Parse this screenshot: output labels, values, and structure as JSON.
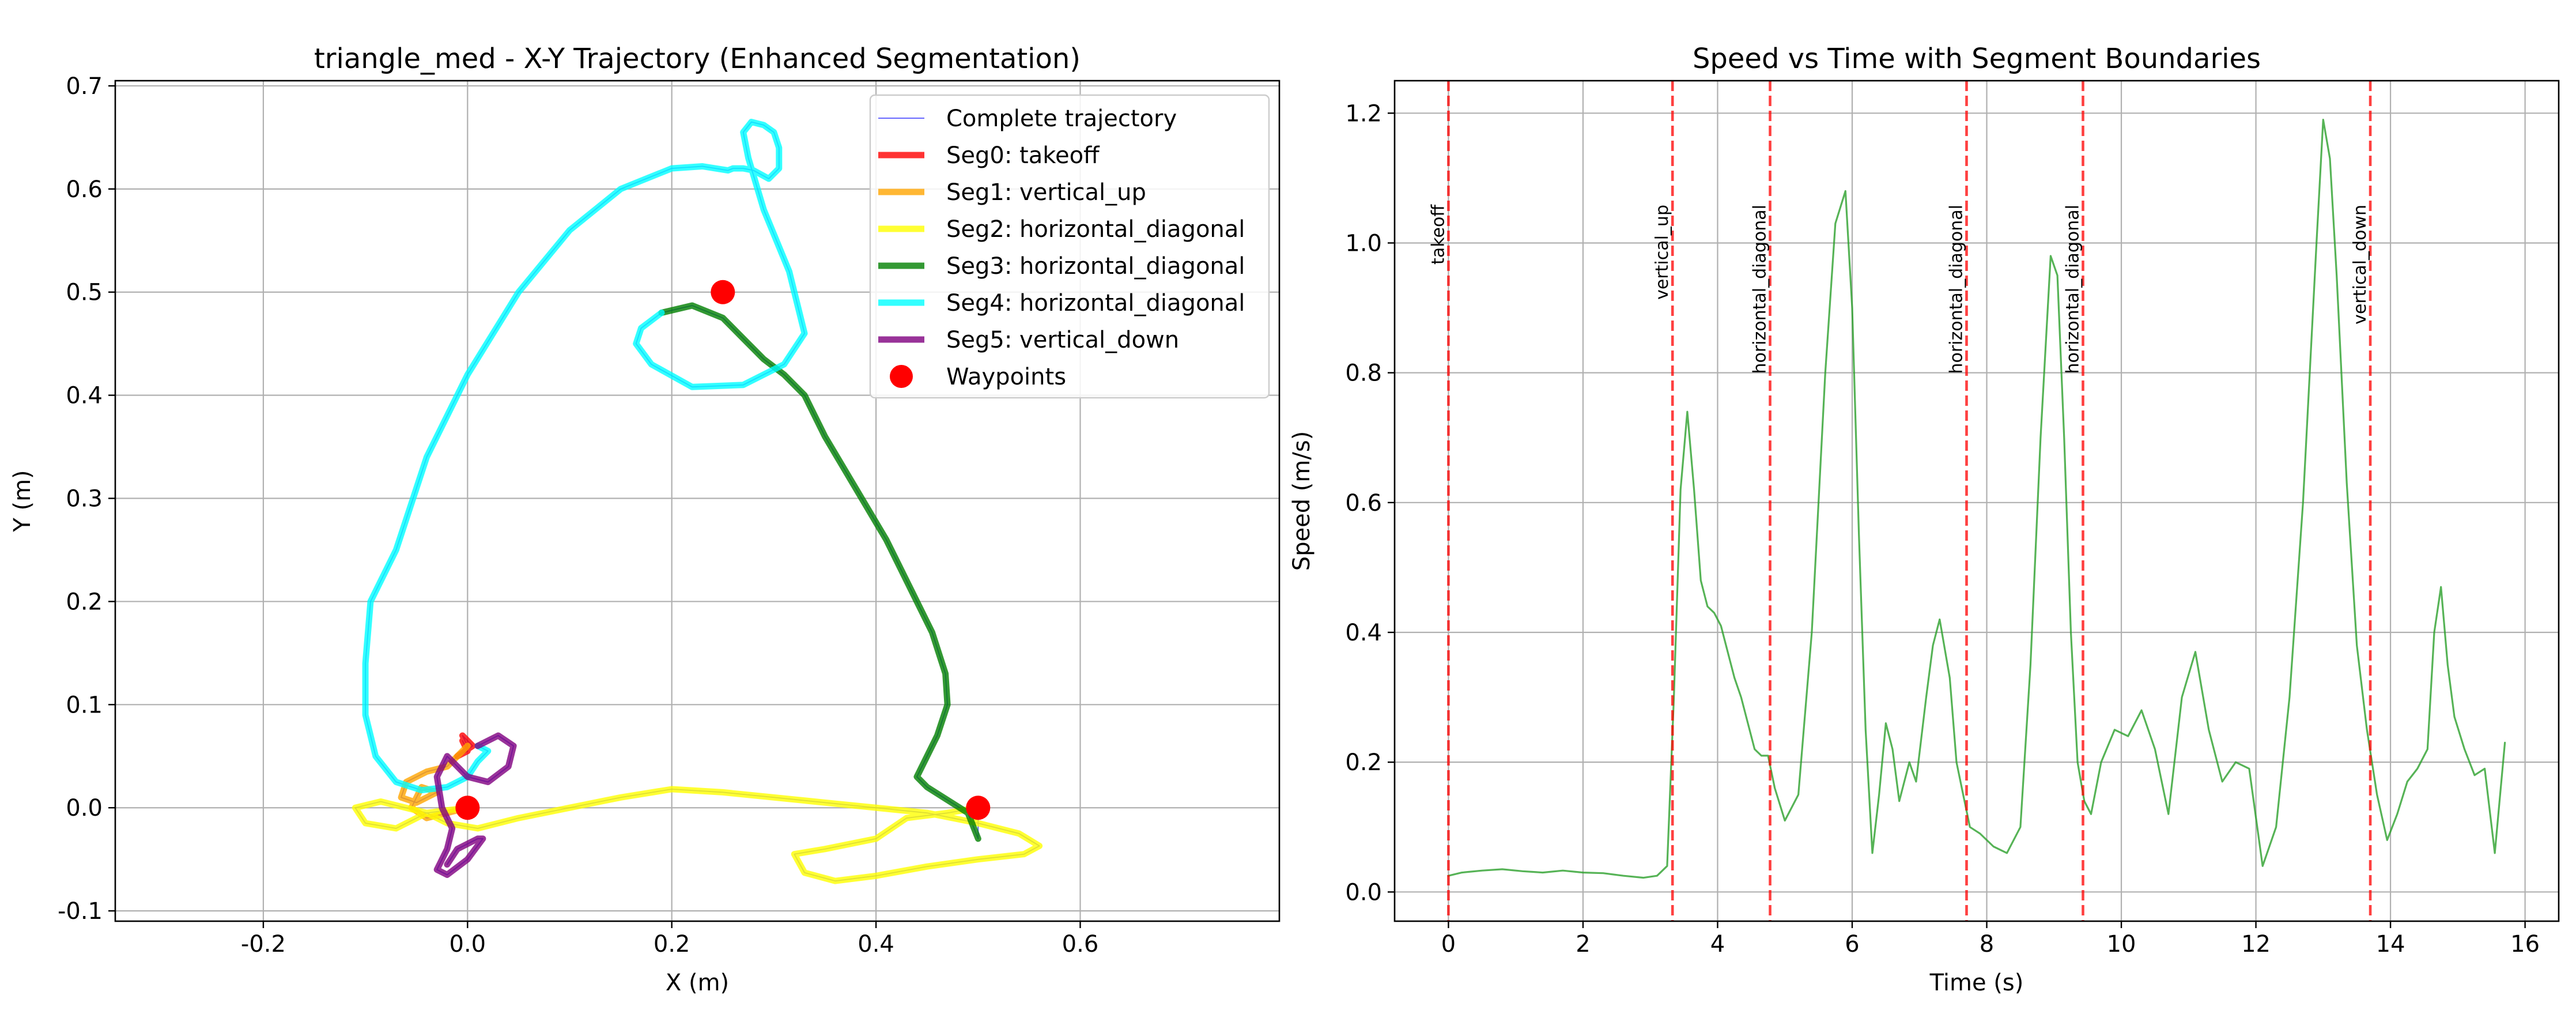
{
  "colors": {
    "complete": "#0000ff",
    "seg0": "#ff0000",
    "seg1": "#ffa500",
    "seg2": "#ffff00",
    "seg3": "#008000",
    "seg4": "#00ffff",
    "seg5": "#800080",
    "waypoint": "#ff0000",
    "speed": "#2ca02c",
    "boundary": "#ff0000",
    "grid": "#b0b0b0"
  },
  "chart_data": [
    {
      "type": "line",
      "title": "triangle_med - X-Y Trajectory (Enhanced Segmentation)",
      "xlabel": "X (m)",
      "ylabel": "Y (m)",
      "xlim": [
        -0.345,
        0.795
      ],
      "ylim": [
        -0.11,
        0.705
      ],
      "xticks": [
        -0.2,
        0.0,
        0.2,
        0.4,
        0.6
      ],
      "xtick_labels": [
        "-0.2",
        "0.0",
        "0.2",
        "0.4",
        "0.6"
      ],
      "yticks": [
        -0.1,
        0.0,
        0.1,
        0.2,
        0.3,
        0.4,
        0.5,
        0.6,
        0.7
      ],
      "ytick_labels": [
        "-0.1",
        "0.0",
        "0.1",
        "0.2",
        "0.3",
        "0.4",
        "0.5",
        "0.6",
        "0.7"
      ],
      "grid": true,
      "legend_position": "upper-right",
      "legend": [
        "Complete trajectory",
        "Seg0: takeoff",
        "Seg1: vertical_up",
        "Seg2: horizontal_diagonal",
        "Seg3: horizontal_diagonal",
        "Seg4: horizontal_diagonal",
        "Seg5: vertical_down",
        "Waypoints"
      ],
      "series": [
        {
          "name": "Seg0: takeoff",
          "color_key": "seg0",
          "x": [
            -0.005,
            0.0,
            -0.01,
            0.005,
            -0.005,
            0.0
          ],
          "y": [
            0.065,
            0.055,
            0.05,
            0.06,
            0.07,
            0.06
          ]
        },
        {
          "name": "Seg1: vertical_up",
          "color_key": "seg1",
          "x": [
            0.0,
            -0.02,
            -0.04,
            -0.06,
            -0.065,
            -0.05,
            -0.03,
            -0.045,
            -0.055,
            -0.04,
            -0.02,
            0.0
          ],
          "y": [
            0.06,
            0.04,
            0.035,
            0.025,
            0.01,
            0.005,
            0.015,
            0.02,
            0.0,
            -0.01,
            -0.005,
            0.0
          ]
        },
        {
          "name": "Seg2: horizontal_diagonal",
          "color_key": "seg2",
          "x": [
            0.0,
            -0.04,
            -0.07,
            -0.1,
            -0.11,
            -0.085,
            -0.04,
            -0.02,
            0.01,
            0.05,
            0.1,
            0.15,
            0.2,
            0.25,
            0.3,
            0.35,
            0.4,
            0.45,
            0.5,
            0.54,
            0.56,
            0.545,
            0.5,
            0.45,
            0.4,
            0.36,
            0.33,
            0.32,
            0.35,
            0.4,
            0.43,
            0.47,
            0.5
          ],
          "y": [
            0.0,
            -0.005,
            -0.02,
            -0.015,
            0.0,
            0.006,
            -0.005,
            -0.015,
            -0.02,
            -0.01,
            0.0,
            0.01,
            0.018,
            0.015,
            0.01,
            0.005,
            0.0,
            -0.005,
            -0.015,
            -0.025,
            -0.037,
            -0.045,
            -0.05,
            -0.057,
            -0.066,
            -0.071,
            -0.063,
            -0.045,
            -0.04,
            -0.03,
            -0.01,
            -0.005,
            0.0
          ]
        },
        {
          "name": "Seg3: horizontal_diagonal",
          "color_key": "seg3",
          "x": [
            0.5,
            0.49,
            0.45,
            0.44,
            0.46,
            0.47,
            0.468,
            0.455,
            0.435,
            0.41,
            0.38,
            0.35,
            0.33,
            0.31,
            0.29,
            0.27,
            0.25,
            0.22,
            0.19
          ],
          "y": [
            -0.03,
            -0.005,
            0.02,
            0.03,
            0.07,
            0.1,
            0.13,
            0.17,
            0.21,
            0.26,
            0.31,
            0.36,
            0.4,
            0.42,
            0.435,
            0.455,
            0.475,
            0.487,
            0.48
          ]
        },
        {
          "name": "Seg4: horizontal_diagonal",
          "color_key": "seg4",
          "x": [
            0.19,
            0.17,
            0.165,
            0.18,
            0.22,
            0.27,
            0.31,
            0.33,
            0.315,
            0.29,
            0.275,
            0.27,
            0.278,
            0.29,
            0.3,
            0.305,
            0.305,
            0.295,
            0.28,
            0.27,
            0.26,
            0.255,
            0.23,
            0.2,
            0.15,
            0.1,
            0.05,
            0.0,
            -0.04,
            -0.07,
            -0.095,
            -0.1,
            -0.1,
            -0.09,
            -0.07,
            -0.045,
            -0.02,
            0.0,
            0.01,
            0.02,
            0.01
          ],
          "y": [
            0.48,
            0.465,
            0.45,
            0.43,
            0.408,
            0.41,
            0.43,
            0.46,
            0.52,
            0.58,
            0.63,
            0.655,
            0.665,
            0.662,
            0.655,
            0.64,
            0.62,
            0.61,
            0.618,
            0.62,
            0.62,
            0.618,
            0.622,
            0.62,
            0.6,
            0.56,
            0.5,
            0.42,
            0.34,
            0.25,
            0.2,
            0.14,
            0.09,
            0.05,
            0.025,
            0.017,
            0.02,
            0.03,
            0.045,
            0.055,
            0.06
          ]
        },
        {
          "name": "Seg5: vertical_down",
          "color_key": "seg5",
          "x": [
            0.01,
            0.03,
            0.045,
            0.04,
            0.02,
            0.0,
            -0.02,
            -0.03,
            -0.025,
            -0.015,
            -0.02,
            -0.03,
            -0.02,
            0.0,
            0.015,
            0.01,
            -0.01,
            -0.02
          ],
          "y": [
            0.06,
            0.07,
            0.06,
            0.04,
            0.025,
            0.03,
            0.05,
            0.03,
            0.0,
            -0.02,
            -0.04,
            -0.06,
            -0.065,
            -0.05,
            -0.03,
            -0.03,
            -0.04,
            -0.055
          ]
        },
        {
          "name": "Waypoints",
          "color_key": "waypoint",
          "marker": "point",
          "x": [
            0.0,
            0.25,
            0.5
          ],
          "y": [
            0.0,
            0.5,
            0.0
          ]
        }
      ]
    },
    {
      "type": "line",
      "title": "Speed vs Time with Segment Boundaries",
      "xlabel": "Time (s)",
      "ylabel": "Speed (m/s)",
      "xlim": [
        -0.8,
        16.5
      ],
      "ylim": [
        -0.045,
        1.25
      ],
      "xticks": [
        0,
        2,
        4,
        6,
        8,
        10,
        12,
        14,
        16
      ],
      "xtick_labels": [
        "0",
        "2",
        "4",
        "6",
        "8",
        "10",
        "12",
        "14",
        "16"
      ],
      "yticks": [
        0.0,
        0.2,
        0.4,
        0.6,
        0.8,
        1.0,
        1.2
      ],
      "ytick_labels": [
        "0.0",
        "0.2",
        "0.4",
        "0.6",
        "0.8",
        "1.0",
        "1.2"
      ],
      "grid": true,
      "boundaries": [
        {
          "t": 0.0,
          "label": "takeoff"
        },
        {
          "t": 3.33,
          "label": "vertical_up"
        },
        {
          "t": 4.78,
          "label": "horizontal_diagonal"
        },
        {
          "t": 7.7,
          "label": "horizontal_diagonal"
        },
        {
          "t": 9.43,
          "label": "horizontal_diagonal"
        },
        {
          "t": 13.7,
          "label": "vertical_down"
        }
      ],
      "series": [
        {
          "name": "",
          "color_key": "speed",
          "x": [
            0.0,
            0.2,
            0.5,
            0.8,
            1.1,
            1.4,
            1.7,
            2.0,
            2.3,
            2.6,
            2.9,
            3.1,
            3.25,
            3.35,
            3.45,
            3.55,
            3.65,
            3.75,
            3.85,
            3.95,
            4.05,
            4.15,
            4.25,
            4.35,
            4.45,
            4.55,
            4.65,
            4.75,
            4.85,
            5.0,
            5.2,
            5.4,
            5.6,
            5.75,
            5.9,
            6.0,
            6.1,
            6.2,
            6.3,
            6.4,
            6.5,
            6.6,
            6.7,
            6.85,
            6.95,
            7.1,
            7.2,
            7.3,
            7.45,
            7.55,
            7.65,
            7.75,
            7.9,
            8.1,
            8.3,
            8.5,
            8.65,
            8.8,
            8.95,
            9.05,
            9.15,
            9.25,
            9.35,
            9.45,
            9.55,
            9.7,
            9.9,
            10.1,
            10.3,
            10.5,
            10.7,
            10.9,
            11.1,
            11.3,
            11.5,
            11.7,
            11.9,
            12.1,
            12.3,
            12.5,
            12.7,
            12.9,
            13.0,
            13.1,
            13.2,
            13.35,
            13.5,
            13.65,
            13.8,
            13.95,
            14.1,
            14.25,
            14.4,
            14.55,
            14.65,
            14.75,
            14.85,
            14.95,
            15.1,
            15.25,
            15.4,
            15.55,
            15.7
          ],
          "y": [
            0.025,
            0.03,
            0.033,
            0.035,
            0.032,
            0.03,
            0.033,
            0.03,
            0.029,
            0.025,
            0.022,
            0.025,
            0.04,
            0.3,
            0.62,
            0.74,
            0.62,
            0.48,
            0.44,
            0.43,
            0.41,
            0.37,
            0.33,
            0.3,
            0.26,
            0.22,
            0.21,
            0.21,
            0.16,
            0.11,
            0.15,
            0.4,
            0.8,
            1.03,
            1.08,
            0.9,
            0.55,
            0.25,
            0.06,
            0.15,
            0.26,
            0.22,
            0.14,
            0.2,
            0.17,
            0.3,
            0.38,
            0.42,
            0.33,
            0.2,
            0.15,
            0.1,
            0.09,
            0.07,
            0.06,
            0.1,
            0.35,
            0.7,
            0.98,
            0.95,
            0.7,
            0.4,
            0.2,
            0.14,
            0.12,
            0.2,
            0.25,
            0.24,
            0.28,
            0.22,
            0.12,
            0.3,
            0.37,
            0.25,
            0.17,
            0.2,
            0.19,
            0.04,
            0.1,
            0.3,
            0.6,
            1.0,
            1.19,
            1.13,
            0.95,
            0.63,
            0.38,
            0.25,
            0.15,
            0.08,
            0.12,
            0.17,
            0.19,
            0.22,
            0.4,
            0.47,
            0.35,
            0.27,
            0.22,
            0.18,
            0.19,
            0.06,
            0.23
          ]
        }
      ]
    }
  ]
}
